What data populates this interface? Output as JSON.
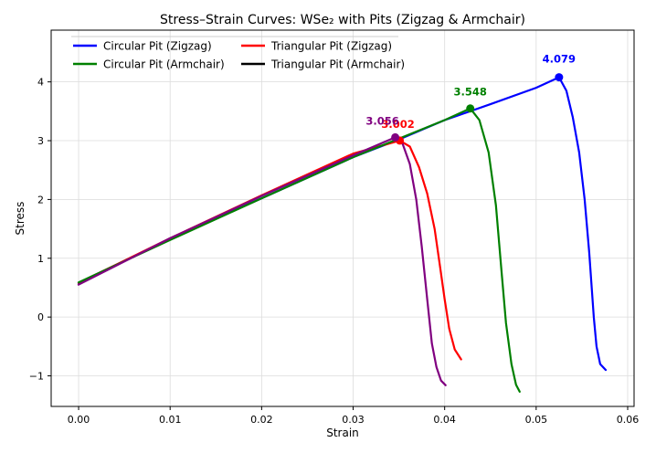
{
  "chart_data": {
    "type": "line",
    "title": "Stress–Strain Curves: WSe₂ with Pits (Zigzag & Armchair)",
    "xlabel": "Strain",
    "ylabel": "Stress",
    "xlim": [
      -0.003,
      0.0607
    ],
    "ylim": [
      -1.52,
      4.88
    ],
    "x_ticks": [
      0.0,
      0.01,
      0.02,
      0.03,
      0.04,
      0.05,
      0.06
    ],
    "x_tick_labels": [
      "0.00",
      "0.01",
      "0.02",
      "0.03",
      "0.04",
      "0.05",
      "0.06"
    ],
    "y_ticks": [
      -1,
      0,
      1,
      2,
      3,
      4
    ],
    "y_tick_labels": [
      "−1",
      "0",
      "1",
      "2",
      "3",
      "4"
    ],
    "grid": true,
    "legend_position": "top-left",
    "series": [
      {
        "name": "Circular Pit (Zigzag)",
        "color": "#0000ff",
        "x": [
          0.0,
          0.01,
          0.02,
          0.03,
          0.035,
          0.04,
          0.045,
          0.05,
          0.0525,
          0.0533,
          0.054,
          0.0547,
          0.0553,
          0.0558,
          0.0563,
          0.0566,
          0.057,
          0.0576
        ],
        "y": [
          0.56,
          1.34,
          2.02,
          2.72,
          3.02,
          3.35,
          3.62,
          3.9,
          4.079,
          3.85,
          3.4,
          2.8,
          2.0,
          1.1,
          0.0,
          -0.5,
          -0.8,
          -0.9
        ],
        "peak": {
          "x": 0.0525,
          "y": 4.079,
          "label": "4.079"
        }
      },
      {
        "name": "Triangular Pit (Zigzag)",
        "color": "#ff0000",
        "x": [
          0.0,
          0.01,
          0.02,
          0.03,
          0.0351,
          0.0362,
          0.0372,
          0.0381,
          0.0389,
          0.0395,
          0.04,
          0.0405,
          0.0411,
          0.0418
        ],
        "y": [
          0.58,
          1.34,
          2.07,
          2.78,
          3.002,
          2.9,
          2.55,
          2.1,
          1.5,
          0.85,
          0.3,
          -0.2,
          -0.55,
          -0.72
        ],
        "peak": {
          "x": 0.0351,
          "y": 3.002,
          "label": "3.002"
        }
      },
      {
        "name": "Circular Pit (Armchair)",
        "color": "#008000",
        "x": [
          0.0,
          0.01,
          0.02,
          0.03,
          0.04,
          0.0428,
          0.0438,
          0.0448,
          0.0456,
          0.0462,
          0.0467,
          0.0473,
          0.0478,
          0.0482
        ],
        "y": [
          0.59,
          1.31,
          2.02,
          2.72,
          3.35,
          3.548,
          3.35,
          2.8,
          1.9,
          0.8,
          -0.1,
          -0.8,
          -1.15,
          -1.27
        ],
        "peak": {
          "x": 0.0428,
          "y": 3.548,
          "label": "3.548"
        }
      },
      {
        "name": "Triangular Pit (Armchair)",
        "color": "#000000",
        "x": [],
        "y": []
      },
      {
        "name": "",
        "color": "#800080",
        "x": [
          0.0,
          0.01,
          0.02,
          0.03,
          0.0346,
          0.0354,
          0.0362,
          0.0369,
          0.0375,
          0.0381,
          0.0386,
          0.0391,
          0.0396,
          0.0401
        ],
        "y": [
          0.55,
          1.34,
          2.06,
          2.75,
          3.056,
          2.95,
          2.6,
          2.0,
          1.2,
          0.3,
          -0.45,
          -0.85,
          -1.08,
          -1.16
        ],
        "peak": {
          "x": 0.0346,
          "y": 3.056,
          "label": "3.056"
        }
      }
    ]
  }
}
